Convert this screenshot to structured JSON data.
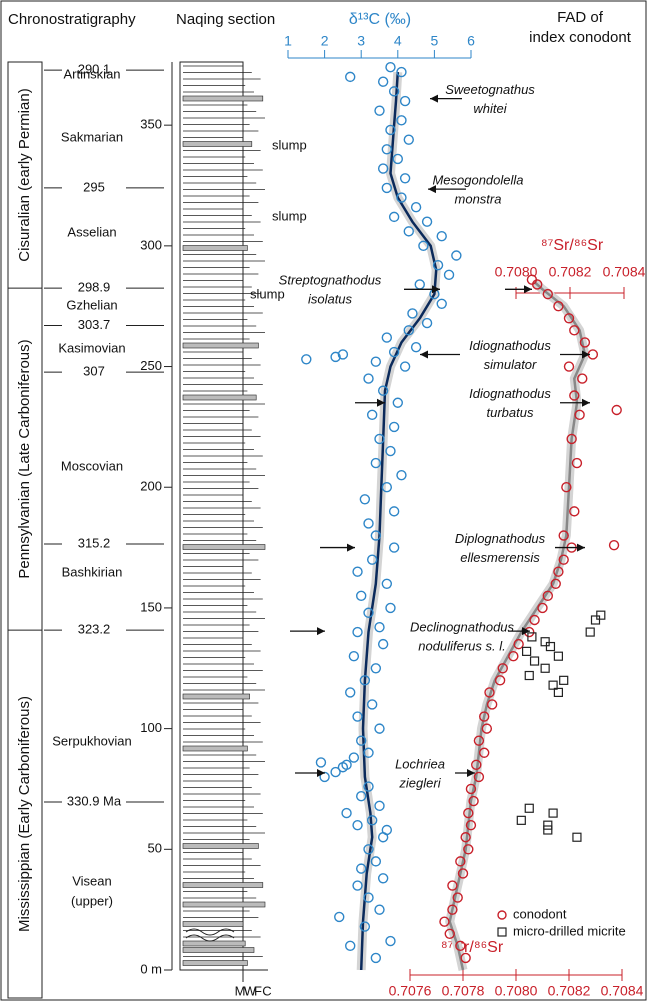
{
  "header": {
    "chronostratigraphy": "Chronostratigraphy",
    "section": "Naqing section",
    "fad": [
      "FAD of",
      "index conodont"
    ]
  },
  "stratigraphy": {
    "periods": [
      "Cisuralian (early Permian)",
      "Pennsylvanian (Late Carboniferous)",
      "Mississippian (Early Carboniferous)"
    ],
    "stages": [
      [
        "Artinskian"
      ],
      [
        "Sakmarian"
      ],
      [
        "Asselian"
      ],
      [
        "Gzhelian"
      ],
      [
        "Kasimovian"
      ],
      [
        "Moscovian"
      ],
      [
        "Bashkirian"
      ],
      [
        "Serpukhovian"
      ],
      [
        "Visean",
        "(upper)"
      ]
    ],
    "boundaries": [
      {
        "label": "290.1",
        "height": 372.8
      },
      {
        "label": "295",
        "height": 324
      },
      {
        "label": "298.9",
        "height": 282.5
      },
      {
        "label": "303.7",
        "height": 267
      },
      {
        "label": "307",
        "height": 247.7
      },
      {
        "label": "315.2",
        "height": 176.5
      },
      {
        "label": "323.2",
        "height": 140.8
      },
      {
        "label": "330.9 Ma",
        "height": 69.6
      }
    ]
  },
  "section": {
    "lithology": [
      "M",
      "W",
      "F",
      "C"
    ],
    "notes": [
      "slump",
      "slump",
      "slump"
    ]
  },
  "fad": [
    {
      "label": [
        "Sweetognathus",
        "whitei"
      ],
      "height": 361
    },
    {
      "label": [
        "Mesogondolella",
        "monstra"
      ],
      "height": 323.5
    },
    {
      "label": [
        "Streptognathodus",
        "isolatus"
      ],
      "height": 282
    },
    {
      "label": [
        "Idiognathodus",
        "simulator"
      ],
      "height": 255
    },
    {
      "label": [
        "Idiognathodus",
        "turbatus"
      ],
      "height": 235
    },
    {
      "label": [
        "Diplognathodus",
        "ellesmerensis"
      ],
      "height": 175
    },
    {
      "label": [
        "Declinognathodus",
        "noduliferus s. l."
      ],
      "height": 140.4
    },
    {
      "label": [
        "Lochriea",
        "ziegleri"
      ],
      "height": 81.6
    }
  ],
  "chart_data": [
    {
      "type": "scatter",
      "title": "δ¹³C (‰)",
      "color": "#2e86c8",
      "xlim": [
        1,
        6
      ],
      "xticks": [
        1,
        2,
        3,
        4,
        5,
        6
      ],
      "ylim": [
        0,
        376
      ],
      "yticks": [
        {
          "value": 0,
          "label": "0 m"
        },
        50,
        100,
        150,
        200,
        250,
        300,
        350
      ],
      "series": [
        {
          "marker": "circle",
          "color": "#2e86c8",
          "x": [
            3.4,
            2.7,
            3.8,
            3.1,
            2.4,
            3.5,
            3.2,
            2.9,
            3.6,
            3.0,
            3.4,
            3.2,
            3.6,
            3.7,
            2.9,
            3.3,
            2.6,
            3.5,
            3.0,
            3.2,
            2.0,
            2.3,
            2.5,
            2.6,
            1.9,
            2.8,
            3.2,
            3.0,
            3.5,
            2.9,
            3.3,
            2.7,
            3.1,
            3.4,
            2.8,
            3.6,
            2.9,
            3.5,
            3.2,
            3.8,
            3.0,
            3.7,
            2.9,
            3.3,
            3.9,
            3.4,
            3.2,
            3.9,
            3.1,
            3.7,
            4.1,
            3.4,
            3.8,
            3.5,
            3.9,
            3.3,
            4.0,
            3.6,
            3.2,
            4.2,
            3.4,
            1.5,
            2.3,
            2.5,
            3.9,
            4.5,
            3.7,
            4.3,
            4.8,
            4.4,
            5.2,
            5.0,
            4.6,
            5.4,
            5.1,
            5.6,
            4.7,
            5.2,
            4.3,
            4.8,
            3.9,
            4.5,
            4.1,
            3.7,
            4.2,
            3.6,
            4.0,
            3.7,
            4.3,
            3.8,
            4.1,
            3.5,
            4.2,
            3.9,
            3.6,
            2.7,
            4.1,
            3.8
          ],
          "values": [
            5,
            10,
            12,
            18,
            22,
            25,
            30,
            35,
            38,
            42,
            45,
            50,
            55,
            58,
            60,
            62,
            65,
            68,
            72,
            76,
            80,
            82,
            84,
            85,
            86,
            88,
            90,
            95,
            100,
            105,
            110,
            115,
            120,
            125,
            130,
            135,
            140,
            142,
            148,
            150,
            155,
            160,
            165,
            170,
            175,
            180,
            185,
            190,
            195,
            200,
            205,
            210,
            215,
            220,
            225,
            230,
            235,
            240,
            245,
            250,
            252,
            253,
            254,
            255,
            256,
            258,
            262,
            265,
            268,
            272,
            276,
            280,
            284,
            288,
            292,
            296,
            300,
            304,
            306,
            310,
            312,
            316,
            320,
            324,
            328,
            332,
            336,
            340,
            344,
            348,
            352,
            356,
            360,
            364,
            368,
            370,
            372,
            374
          ]
        },
        {
          "marker": "line",
          "color": "#0b2a5b",
          "x": [
            3.0,
            3.05,
            3.15,
            3.3,
            3.25,
            3.1,
            3.05,
            3.1,
            3.2,
            3.4,
            3.5,
            3.55,
            3.6,
            3.65,
            3.8,
            4.1,
            4.6,
            5.0,
            5.05,
            4.9,
            4.4,
            4.0,
            3.8,
            3.85,
            3.9,
            3.95,
            4.0
          ],
          "values": [
            0,
            20,
            40,
            55,
            65,
            80,
            100,
            120,
            140,
            160,
            180,
            200,
            220,
            240,
            250,
            260,
            270,
            280,
            290,
            300,
            310,
            320,
            330,
            340,
            350,
            360,
            372
          ]
        }
      ]
    },
    {
      "type": "scatter",
      "xlabel": "⁸⁷Sr/⁸⁶Sr",
      "x2label": "⁸⁷Sr/⁸⁶Sr",
      "color": "#c8202a",
      "xlim": [
        0.7076,
        0.7084
      ],
      "xticks": [
        0.7076,
        0.7078,
        {
          "value": 0.708,
          "label": "0.7080"
        },
        0.7082,
        0.7084
      ],
      "x2lim": [
        0.708,
        0.7084
      ],
      "x2ticks": [
        {
          "value": 0.708,
          "label": "0.7080"
        },
        0.7082,
        0.7084
      ],
      "ylim": [
        0,
        376
      ],
      "series": [
        {
          "name": "conodont",
          "marker": "circle",
          "color": "#c8202a",
          "x": [
            0.70781,
            0.70779,
            0.70775,
            0.70773,
            0.70776,
            0.70778,
            0.70776,
            0.7078,
            0.70779,
            0.70782,
            0.70781,
            0.70783,
            0.70782,
            0.70784,
            0.70783,
            0.70786,
            0.70785,
            0.70788,
            0.70786,
            0.70789,
            0.70788,
            0.70791,
            0.7079,
            0.70794,
            0.70795,
            0.70799,
            0.70801,
            0.70805,
            0.70807,
            0.7081,
            0.70812,
            0.70815,
            0.70816,
            0.70818,
            0.70821,
            0.70837,
            0.70818,
            0.70822,
            0.70819,
            0.70823,
            0.70821,
            0.70824,
            0.70838,
            0.70822,
            0.70825,
            0.7082,
            0.70829,
            0.70826,
            0.70822,
            0.7082,
            0.70816,
            0.70812,
            0.70808,
            0.70806
          ],
          "values": [
            5,
            10,
            15,
            20,
            25,
            30,
            35,
            40,
            45,
            50,
            55,
            60,
            65,
            70,
            75,
            80,
            85,
            90,
            95,
            100,
            105,
            110,
            115,
            120,
            125,
            130,
            135,
            140,
            145,
            150,
            155,
            160,
            165,
            170,
            175,
            176,
            180,
            190,
            200,
            210,
            220,
            230,
            232,
            238,
            245,
            250,
            255,
            260,
            265,
            270,
            275,
            280,
            284,
            286
          ]
        },
        {
          "name": "micro-drilled micrite",
          "marker": "square",
          "color": "#222222",
          "x": [
            0.70823,
            0.70812,
            0.70812,
            0.70802,
            0.70814,
            0.70805,
            0.70816,
            0.70814,
            0.70818,
            0.70805,
            0.70811,
            0.70807,
            0.70816,
            0.70804,
            0.70813,
            0.70811,
            0.70806,
            0.70828,
            0.7083,
            0.70832
          ],
          "values": [
            55,
            58,
            60,
            62,
            65,
            67,
            115,
            118,
            120,
            122,
            125,
            128,
            130,
            132,
            134,
            136,
            138,
            140,
            145,
            147
          ]
        },
        {
          "marker": "line",
          "color": "#888888",
          "x": [
            0.7078,
            0.70778,
            0.70775,
            0.70777,
            0.70779,
            0.70781,
            0.70782,
            0.70783,
            0.70785,
            0.70786,
            0.70787,
            0.70789,
            0.70792,
            0.70797,
            0.70802,
            0.70808,
            0.70814,
            0.70817,
            0.70819,
            0.7082,
            0.70821,
            0.70823,
            0.70822,
            0.70826,
            0.70824,
            0.70818,
            0.7081,
            0.70807
          ],
          "values": [
            0,
            10,
            20,
            30,
            40,
            50,
            60,
            70,
            80,
            90,
            100,
            110,
            120,
            130,
            140,
            150,
            160,
            170,
            180,
            200,
            220,
            235,
            245,
            255,
            265,
            275,
            282,
            285
          ]
        }
      ]
    }
  ]
}
